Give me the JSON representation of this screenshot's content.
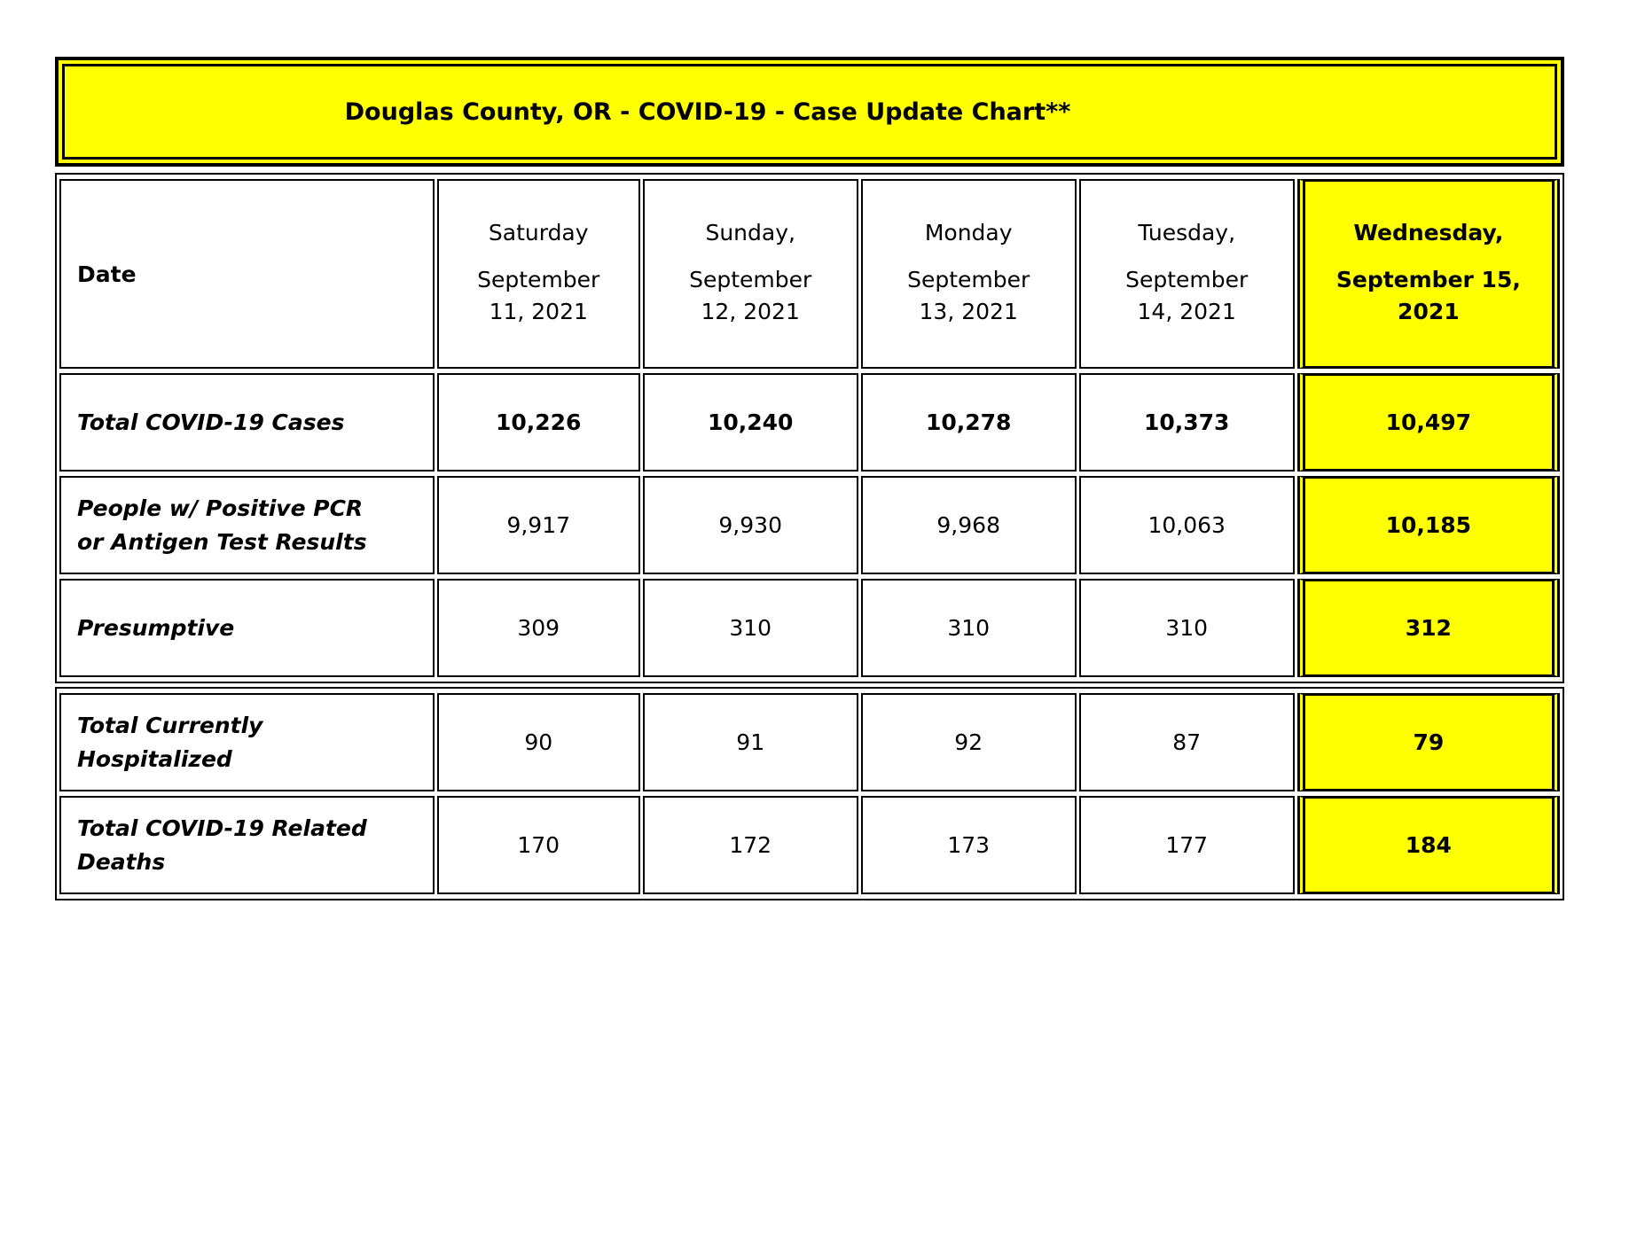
{
  "banner": {
    "title": "Douglas County, OR - COVID-19 - Case Update Chart**",
    "background_color": "#ffff00",
    "border_color": "#000000"
  },
  "table": {
    "highlight_color": "#ffff00",
    "header": {
      "row_label": "Date",
      "columns": [
        {
          "day": "Saturday",
          "date": [
            "September",
            "11, 2021"
          ],
          "highlighted": false
        },
        {
          "day": "Sunday,",
          "date": [
            "September",
            "12, 2021"
          ],
          "highlighted": false
        },
        {
          "day": "Monday",
          "date": [
            "September",
            "13, 2021"
          ],
          "highlighted": false
        },
        {
          "day": "Tuesday,",
          "date": [
            "September",
            "14, 2021"
          ],
          "highlighted": false
        },
        {
          "day": "Wednesday,",
          "date": [
            "September 15,",
            "2021"
          ],
          "highlighted": true
        }
      ]
    },
    "rows": [
      {
        "label": [
          "Total COVID-19 Cases"
        ],
        "values": [
          "10,226",
          "10,240",
          "10,278",
          "10,373",
          "10,497"
        ]
      },
      {
        "label": [
          "People w/ Positive PCR",
          "or Antigen Test Results"
        ],
        "values": [
          "9,917",
          "9,930",
          "9,968",
          "10,063",
          "10,185"
        ]
      },
      {
        "label": [
          "Presumptive"
        ],
        "values": [
          "309",
          "310",
          "310",
          "310",
          "312"
        ]
      },
      {
        "label": [
          "Total Currently",
          "Hospitalized"
        ],
        "values": [
          "90",
          "91",
          "92",
          "87",
          "79"
        ]
      },
      {
        "label": [
          "Total COVID-19 Related",
          "Deaths"
        ],
        "values": [
          "170",
          "172",
          "173",
          "177",
          "184"
        ]
      }
    ]
  }
}
